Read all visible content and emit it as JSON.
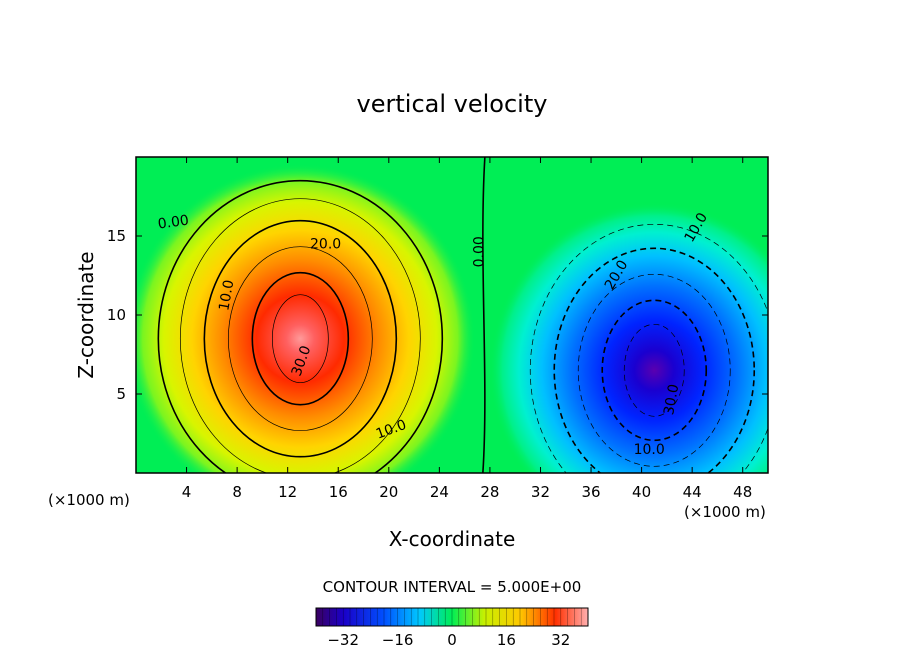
{
  "chart_data": {
    "type": "heatmap",
    "title": "vertical velocity",
    "xlabel": "X-coordinate",
    "ylabel": "Z-coordinate",
    "x_unit_left": "(×1000 m)",
    "x_unit_right": "(×1000 m)",
    "xlim": [
      0,
      50
    ],
    "ylim": [
      0,
      20
    ],
    "x_ticks": [
      "4",
      "8",
      "12",
      "16",
      "20",
      "24",
      "28",
      "32",
      "36",
      "40",
      "44",
      "48"
    ],
    "y_ticks": [
      "5",
      "10",
      "15"
    ],
    "contour_interval_text": "CONTOUR INTERVAL = 5.000E+00",
    "colorbar": {
      "min": -40,
      "max": 40,
      "ticks": [
        "-32",
        "-16",
        "0",
        "16",
        "32"
      ]
    },
    "contour_labels": [
      "0.00",
      "20.0",
      "10.0",
      "30.0",
      "10.0",
      "0.00",
      "10.0",
      "20.0",
      "30.0",
      "10.0"
    ],
    "features": [
      {
        "kind": "updraft",
        "center_x": 13,
        "center_z": 8.5,
        "peak": 38
      },
      {
        "kind": "downdraft",
        "center_x": 41,
        "center_z": 6.5,
        "peak": -38
      }
    ],
    "colors": {
      "background": "#00ee55",
      "updraft_peak": "#ff9090",
      "downdraft_peak": "#5a00b0"
    }
  }
}
